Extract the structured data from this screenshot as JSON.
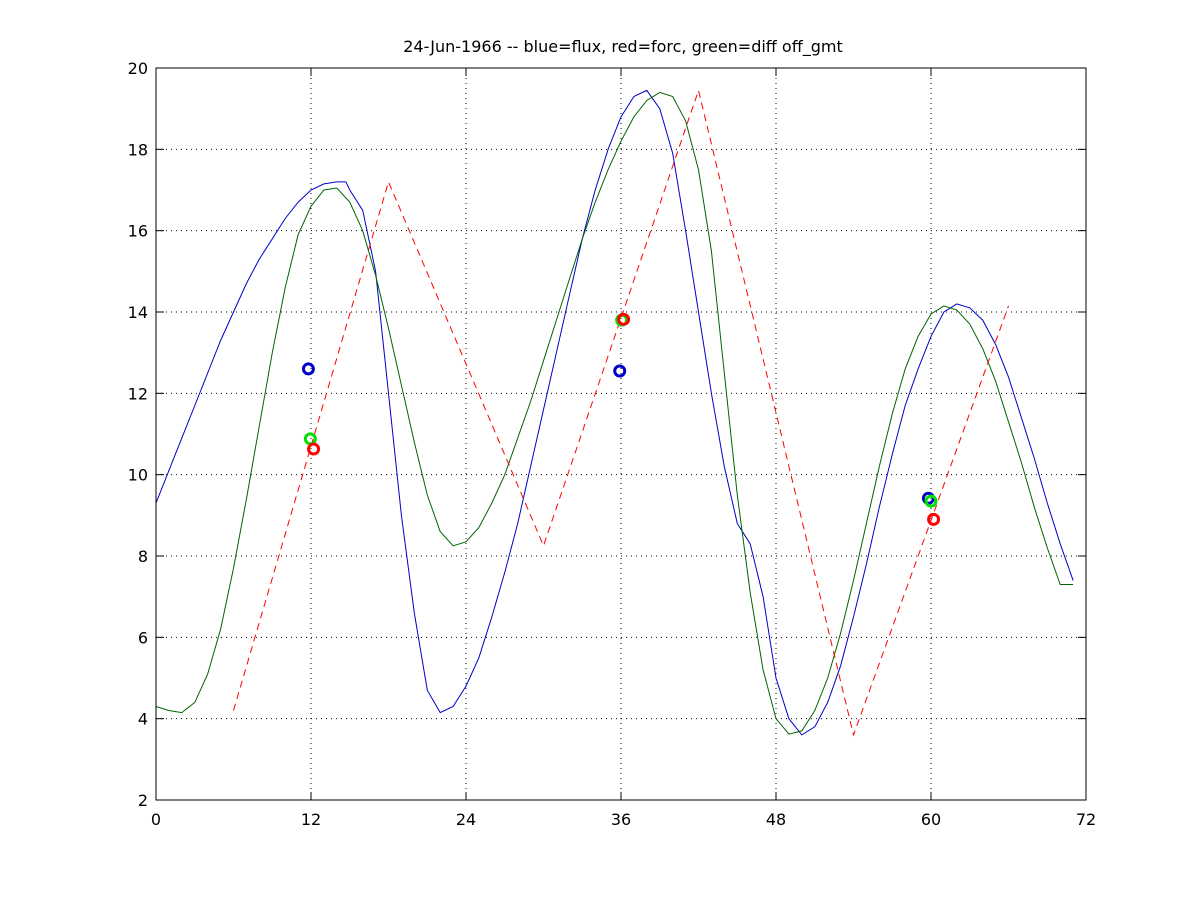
{
  "chart_data": {
    "type": "line",
    "title": "24-Jun-1966 -- blue=flux, red=forc, green=diff off_gmt",
    "xlabel": "",
    "ylabel": "",
    "xlim": [
      0,
      72
    ],
    "ylim": [
      2,
      20
    ],
    "xticks": [
      0,
      12,
      24,
      36,
      48,
      60,
      72
    ],
    "yticks": [
      2,
      4,
      6,
      8,
      10,
      12,
      14,
      16,
      18,
      20
    ],
    "grid": true,
    "colors": {
      "blue": "#0000c8",
      "green": "#006400",
      "red": "#ff0000",
      "lime": "#00e000"
    },
    "series": [
      {
        "color": "#0000c8",
        "style": "solid",
        "x": [
          0,
          1,
          2,
          3,
          4,
          5,
          6,
          7,
          8,
          9,
          10,
          11,
          12,
          13,
          14,
          14.7,
          15,
          16,
          17,
          18,
          19,
          20,
          21,
          22,
          23,
          24,
          25,
          26,
          27,
          28,
          29,
          30,
          31,
          32,
          33,
          34,
          35,
          36,
          37,
          38,
          39,
          40,
          41,
          42,
          43,
          44,
          45,
          46,
          47,
          48,
          49,
          50,
          51,
          52,
          53,
          54,
          55,
          56,
          57,
          58,
          59,
          60,
          61,
          62,
          63,
          64,
          65,
          66,
          67,
          68,
          69,
          70,
          71
        ],
        "y": [
          9.3,
          10.1,
          10.9,
          11.7,
          12.5,
          13.3,
          14.0,
          14.7,
          15.3,
          15.8,
          16.3,
          16.7,
          17.0,
          17.15,
          17.2,
          17.2,
          17.0,
          16.5,
          15.0,
          12.0,
          9.0,
          6.6,
          4.7,
          4.15,
          4.3,
          4.8,
          5.5,
          6.5,
          7.6,
          8.8,
          10.2,
          11.6,
          13.0,
          14.4,
          15.8,
          17.0,
          18.0,
          18.8,
          19.3,
          19.45,
          19.0,
          17.9,
          16.0,
          14.0,
          12.0,
          10.2,
          8.8,
          8.3,
          7.0,
          5.0,
          4.0,
          3.6,
          3.8,
          4.4,
          5.3,
          6.5,
          7.8,
          9.2,
          10.5,
          11.7,
          12.6,
          13.4,
          14.0,
          14.2,
          14.1,
          13.8,
          13.2,
          12.4,
          11.4,
          10.4,
          9.3,
          8.3,
          7.4
        ]
      },
      {
        "color": "#006400",
        "style": "solid",
        "x": [
          0,
          1,
          2,
          3,
          4,
          5,
          6,
          7,
          8,
          9,
          10,
          11,
          12,
          13,
          14,
          15,
          16,
          17,
          18,
          19,
          20,
          21,
          22,
          23,
          24,
          25,
          26,
          27,
          28,
          29,
          30,
          31,
          32,
          33,
          34,
          35,
          36,
          37,
          38,
          39,
          40,
          41,
          42,
          43,
          44,
          45,
          46,
          47,
          48,
          49,
          50,
          51,
          52,
          53,
          54,
          55,
          56,
          57,
          58,
          59,
          60,
          61,
          62,
          63,
          64,
          65,
          66,
          67,
          68,
          69,
          70,
          71
        ],
        "y": [
          4.3,
          4.2,
          4.15,
          4.4,
          5.1,
          6.2,
          7.7,
          9.4,
          11.2,
          13.0,
          14.6,
          15.9,
          16.6,
          17.0,
          17.05,
          16.7,
          16.0,
          14.9,
          13.6,
          12.2,
          10.8,
          9.5,
          8.6,
          8.25,
          8.35,
          8.7,
          9.3,
          10.0,
          10.9,
          11.8,
          12.8,
          13.8,
          14.8,
          15.8,
          16.7,
          17.5,
          18.2,
          18.8,
          19.2,
          19.4,
          19.3,
          18.7,
          17.5,
          15.5,
          12.5,
          9.5,
          7.1,
          5.2,
          4.0,
          3.62,
          3.7,
          4.2,
          5.0,
          6.1,
          7.4,
          8.8,
          10.2,
          11.5,
          12.6,
          13.4,
          13.95,
          14.15,
          14.05,
          13.7,
          13.1,
          12.3,
          11.3,
          10.3,
          9.2,
          8.2,
          7.3,
          7.3
        ]
      },
      {
        "color": "#ff0000",
        "style": "dashed",
        "x": [
          6,
          18,
          30,
          42,
          54,
          66
        ],
        "y": [
          4.2,
          17.2,
          8.25,
          19.45,
          3.6,
          14.15
        ]
      }
    ],
    "markers": [
      {
        "x": 11.8,
        "y": 12.6,
        "color": "#0000c8"
      },
      {
        "x": 11.95,
        "y": 10.88,
        "color": "#00e000"
      },
      {
        "x": 12.2,
        "y": 10.63,
        "color": "#ff0000"
      },
      {
        "x": 35.9,
        "y": 12.55,
        "color": "#0000c8"
      },
      {
        "x": 36.05,
        "y": 13.8,
        "color": "#00e000"
      },
      {
        "x": 36.2,
        "y": 13.82,
        "color": "#ff0000"
      },
      {
        "x": 59.8,
        "y": 9.42,
        "color": "#0000c8"
      },
      {
        "x": 60.0,
        "y": 9.35,
        "color": "#00e000"
      },
      {
        "x": 60.2,
        "y": 8.9,
        "color": "#ff0000"
      }
    ]
  }
}
